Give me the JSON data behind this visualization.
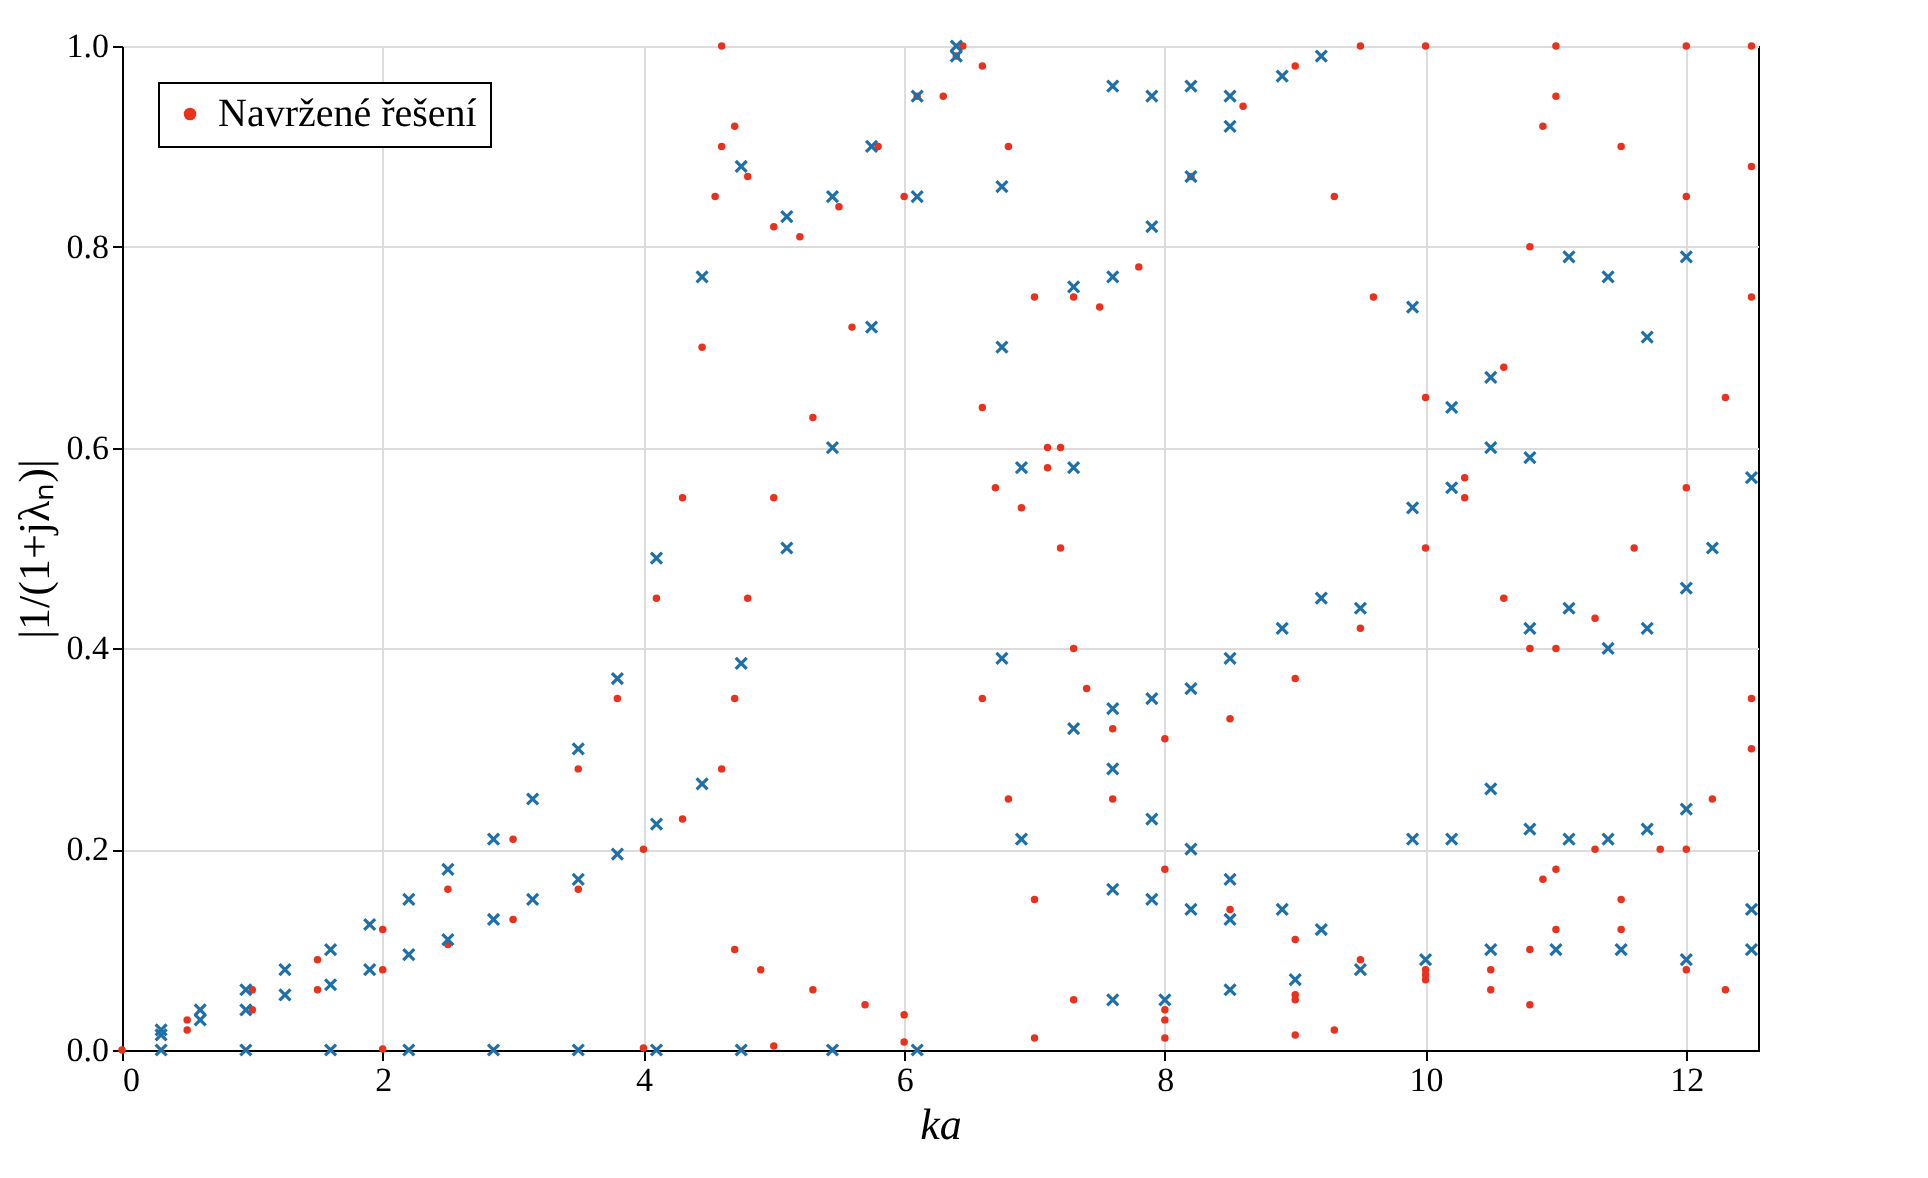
{
  "chart_data": {
    "type": "scatter",
    "xlabel": "ka",
    "ylabel": "|1/(1+jλₙ)|",
    "xlim": [
      0,
      12.55
    ],
    "ylim": [
      0,
      1
    ],
    "xticks": [
      0,
      2,
      4,
      6,
      8,
      10,
      12
    ],
    "yticks": [
      {
        "value": 0,
        "label": "0.0"
      },
      {
        "value": 0.2,
        "label": "0.2"
      },
      {
        "value": 0.4,
        "label": "0.4"
      },
      {
        "value": 0.6,
        "label": "0.6"
      },
      {
        "value": 0.8,
        "label": "0.8"
      },
      {
        "value": 1,
        "label": "1.0"
      }
    ],
    "grid": true,
    "legend": "top left",
    "series": [
      {
        "name": "Navržené řešení",
        "color": "#e8321e",
        "marker": "circle",
        "x": [
          0,
          0.5,
          1,
          1.5,
          2,
          2.5,
          3,
          3.5,
          3.8,
          4.1,
          4.3,
          4.45,
          4.55,
          4.6,
          0.5,
          1,
          1.5,
          2,
          2.5,
          3,
          3.5,
          4,
          4.3,
          4.6,
          4.7,
          4.8,
          5,
          5.3,
          5.6,
          6,
          6.3,
          6.45,
          4.6,
          4.7,
          4.8,
          5,
          5.2,
          5.5,
          5.8,
          6.1,
          6.4,
          6.6,
          6.8,
          7,
          7.1,
          7.2,
          7.3,
          2,
          4,
          5,
          6,
          7,
          8,
          9,
          9.3,
          4.7,
          4.9,
          5.3,
          5.7,
          6,
          6.6,
          6.7,
          6.9,
          7.1,
          7.2,
          6.6,
          6.8,
          7,
          7.3,
          7.4,
          7.6,
          8,
          8.5,
          9,
          9.5,
          10,
          10.3,
          10.6,
          10.8,
          10.9,
          7.3,
          7.5,
          7.8,
          8.2,
          8.6,
          9,
          9.5,
          10,
          11,
          12,
          12.5,
          9.3,
          9.6,
          10,
          10.3,
          10.6,
          10.8,
          11,
          11.3,
          11.6,
          12,
          12.3,
          12.5,
          8,
          9,
          10,
          10.5,
          10.8,
          8,
          9,
          10,
          11,
          11.5,
          12,
          12.5,
          7.6,
          8,
          8.5,
          9,
          9.5,
          10,
          10.5,
          10.8,
          10.9,
          11.3,
          11.8,
          12.2,
          12.5,
          11,
          11.5,
          12,
          12.3,
          11,
          11.5,
          12,
          12.5
        ],
        "values": [
          0,
          0.03,
          0.06,
          0.09,
          0.12,
          0.16,
          0.21,
          0.28,
          0.35,
          0.45,
          0.55,
          0.7,
          0.85,
          1,
          0.02,
          0.04,
          0.06,
          0.08,
          0.105,
          0.13,
          0.16,
          0.2,
          0.23,
          0.28,
          0.35,
          0.45,
          0.55,
          0.63,
          0.72,
          0.85,
          0.95,
          1,
          0.9,
          0.92,
          0.87,
          0.82,
          0.81,
          0.84,
          0.9,
          0.95,
          0.99,
          0.98,
          0.9,
          0.75,
          0.6,
          0.5,
          0.4,
          0.001,
          0.002,
          0.004,
          0.008,
          0.012,
          0.012,
          0.015,
          0.02,
          0.1,
          0.08,
          0.06,
          0.045,
          0.035,
          0.64,
          0.56,
          0.54,
          0.58,
          0.6,
          0.35,
          0.25,
          0.15,
          0.05,
          0.36,
          0.32,
          0.31,
          0.33,
          0.37,
          0.42,
          0.5,
          0.57,
          0.68,
          0.8,
          0.92,
          0.75,
          0.74,
          0.78,
          0.87,
          0.94,
          0.98,
          1,
          1,
          1,
          1,
          1,
          0.85,
          0.75,
          0.65,
          0.55,
          0.45,
          0.4,
          0.4,
          0.43,
          0.5,
          0.56,
          0.65,
          0.75,
          0.03,
          0.05,
          0.07,
          0.08,
          0.1,
          0.04,
          0.055,
          0.08,
          0.12,
          0.15,
          0.2,
          0.3,
          0.25,
          0.18,
          0.14,
          0.11,
          0.09,
          0.075,
          0.06,
          0.045,
          0.17,
          0.2,
          0.2,
          0.25,
          0.35,
          0.18,
          0.12,
          0.08,
          0.06,
          0.95,
          0.9,
          0.85,
          0.88
        ]
      },
      {
        "color": "#1f6fa8",
        "marker": "cross",
        "x": [
          0.3,
          0.6,
          0.95,
          1.25,
          1.6,
          1.9,
          2.2,
          2.5,
          2.85,
          3.15,
          3.5,
          3.8,
          4.1,
          4.45,
          4.75,
          5.1,
          5.45,
          5.75,
          6.1,
          6.4,
          0.3,
          0.6,
          0.95,
          1.25,
          1.6,
          1.9,
          2.2,
          2.5,
          2.85,
          3.15,
          3.5,
          3.8,
          4.1,
          4.45,
          4.75,
          5.1,
          5.45,
          5.75,
          6.1,
          6.4,
          0.3,
          0.95,
          1.6,
          2.2,
          2.85,
          3.5,
          4.1,
          4.75,
          5.45,
          6.1,
          6.75,
          6.75,
          6.75,
          6.9,
          7.3,
          7.3,
          7.3,
          6.9,
          7.6,
          7.9,
          8.2,
          8.5,
          8.9,
          9.2,
          9.5,
          9.9,
          10.2,
          10.5,
          10.8,
          7.6,
          7.9,
          8.2,
          8.5,
          7.6,
          7.9,
          8.2,
          8.5,
          8.9,
          9.2,
          9.9,
          10.2,
          10.5,
          10.8,
          11.1,
          11.4,
          11.7,
          12,
          11.1,
          11.4,
          11.7,
          12,
          12.2,
          12.5,
          7.6,
          7.9,
          8.2,
          8.5,
          8.9,
          9.2,
          9.9,
          10.2,
          10.5,
          10.8,
          11.1,
          11.4,
          11.7,
          12,
          12.5,
          7.6,
          7.9,
          8.2,
          8.5,
          7.6,
          8,
          8.5,
          9,
          9.5,
          10,
          10.5,
          11,
          11.5,
          12,
          12.5
        ],
        "values": [
          0.02,
          0.04,
          0.06,
          0.08,
          0.1,
          0.125,
          0.15,
          0.18,
          0.21,
          0.25,
          0.3,
          0.37,
          0.49,
          0.77,
          0.88,
          0.83,
          0.85,
          0.9,
          0.95,
          1,
          0.015,
          0.03,
          0.04,
          0.055,
          0.065,
          0.08,
          0.095,
          0.11,
          0.13,
          0.15,
          0.17,
          0.195,
          0.225,
          0.265,
          0.385,
          0.5,
          0.6,
          0.72,
          0.85,
          0.99,
          0,
          0,
          0,
          0,
          0,
          0,
          0,
          0,
          0,
          0,
          0.86,
          0.7,
          0.39,
          0.58,
          0.58,
          0.76,
          0.32,
          0.21,
          0.34,
          0.35,
          0.36,
          0.39,
          0.42,
          0.45,
          0.44,
          0.54,
          0.56,
          0.67,
          0.59,
          0.77,
          0.82,
          0.87,
          0.92,
          0.96,
          0.95,
          0.96,
          0.95,
          0.97,
          0.99,
          0.74,
          0.64,
          0.6,
          0.42,
          0.79,
          0.77,
          0.71,
          0.79,
          0.44,
          0.4,
          0.42,
          0.46,
          0.5,
          0.57,
          0.28,
          0.23,
          0.2,
          0.17,
          0.14,
          0.12,
          0.21,
          0.21,
          0.26,
          0.22,
          0.21,
          0.21,
          0.22,
          0.24,
          0.14,
          0.16,
          0.15,
          0.14,
          0.13,
          0.05,
          0.05,
          0.06,
          0.07,
          0.08,
          0.09,
          0.1,
          0.1,
          0.1,
          0.09,
          0.1
        ]
      }
    ]
  }
}
